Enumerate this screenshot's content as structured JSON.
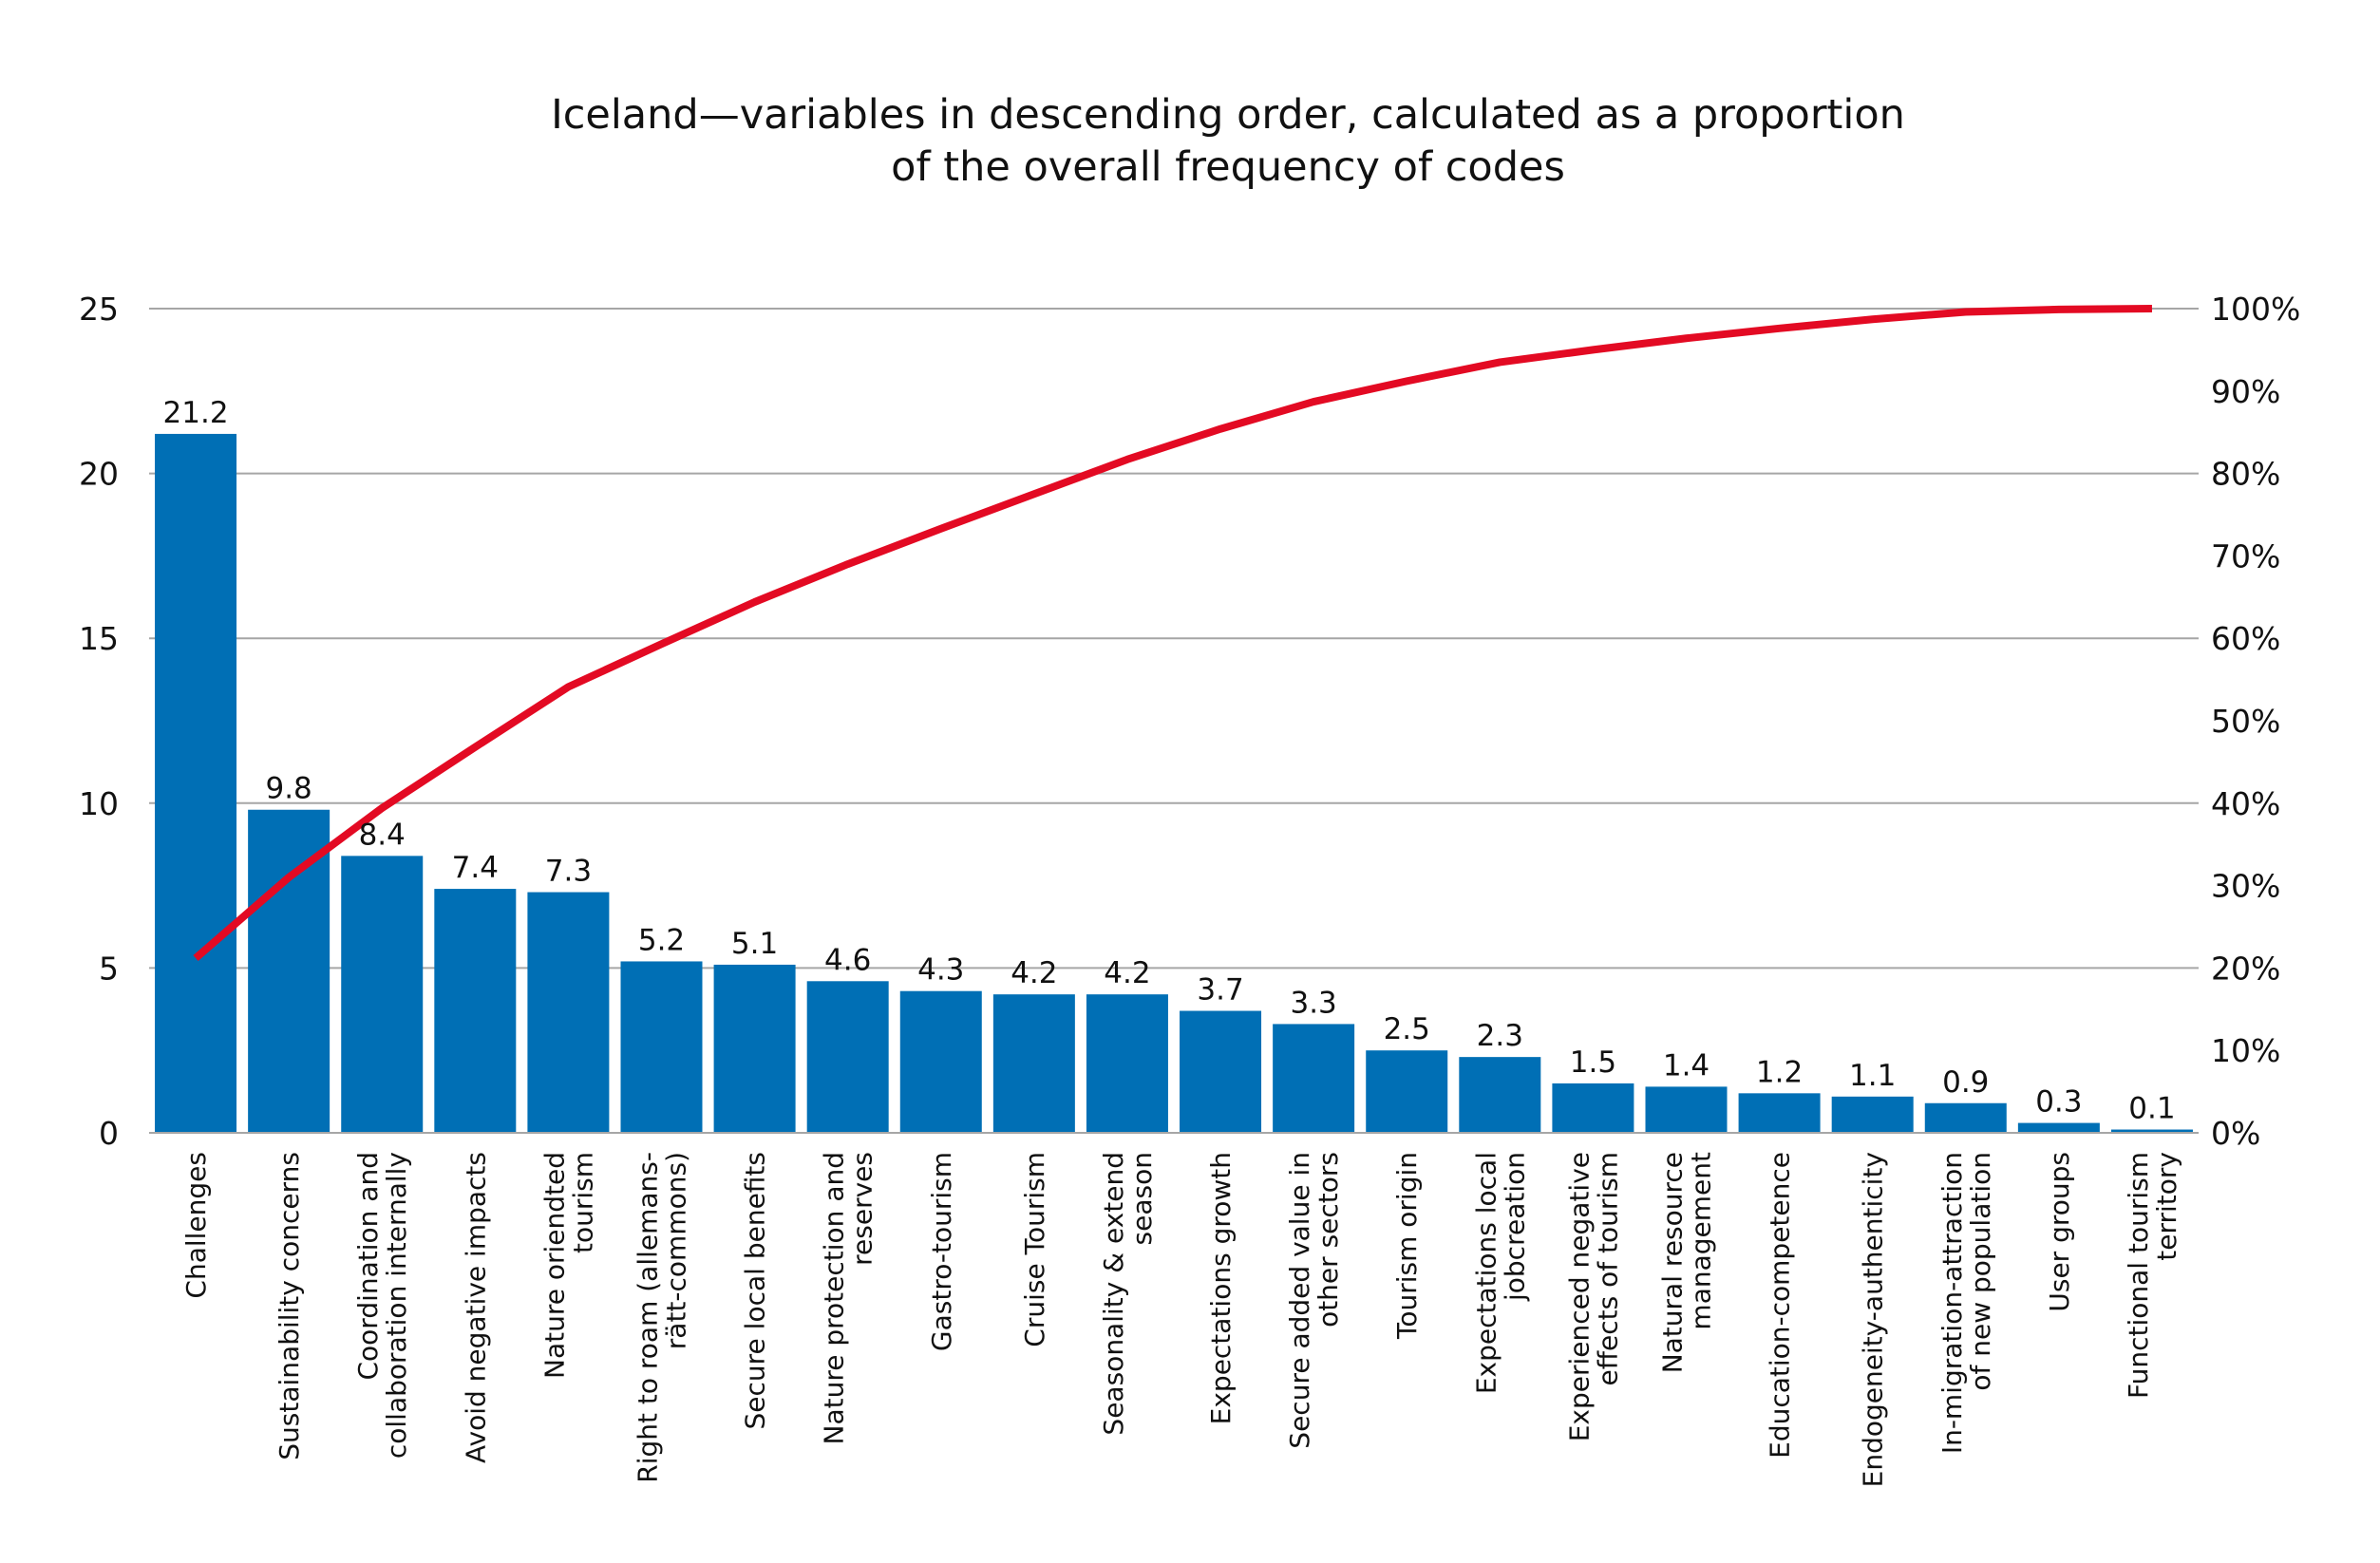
{
  "chart_data": {
    "type": "bar",
    "title": [
      "Iceland—variables in descending order, calculated as a proportion",
      "of the overall frequency of codes"
    ],
    "categories": [
      [
        "Challenges"
      ],
      [
        "Sustainability concerns"
      ],
      [
        "Coordination and",
        "collaboration internally"
      ],
      [
        "Avoid negative impacts"
      ],
      [
        "Nature oriendted",
        "tourism"
      ],
      [
        "Right to roam (allemans-",
        "rätt-commons)"
      ],
      [
        "Secure local benefits"
      ],
      [
        "Nature protection and",
        "reserves"
      ],
      [
        "Gastro-tourism"
      ],
      [
        "Cruise Tourism"
      ],
      [
        "Seasonality & extend",
        "season"
      ],
      [
        "Expectations growth"
      ],
      [
        "Secure added value in",
        "other sectors"
      ],
      [
        "Tourism origin"
      ],
      [
        "Expectations local",
        "jobcreation"
      ],
      [
        "Experienced negative",
        "effects of tourism"
      ],
      [
        "Natural resource",
        "management"
      ],
      [
        "Education-competence"
      ],
      [
        "Endogeneity-authenticity"
      ],
      [
        "In-migration-attraction",
        "of new population"
      ],
      [
        "User groups"
      ],
      [
        "Functional tourism",
        "territory"
      ]
    ],
    "series": [
      {
        "type": "bar",
        "axis": "left",
        "values": [
          21.2,
          9.8,
          8.4,
          7.4,
          7.3,
          5.2,
          5.1,
          4.6,
          4.3,
          4.2,
          4.2,
          3.7,
          3.3,
          2.5,
          2.3,
          1.5,
          1.4,
          1.2,
          1.1,
          0.9,
          0.3,
          0.1
        ],
        "labels": [
          "21.2",
          "9.8",
          "8.4",
          "7.4",
          "7.3",
          "5.2",
          "5.1",
          "4.6",
          "4.3",
          "4.2",
          "4.2",
          "3.7",
          "3.3",
          "2.5",
          "2.3",
          "1.5",
          "1.4",
          "1.2",
          "1.1",
          "0.9",
          "0.3",
          "0.1"
        ],
        "color": "#006fb5"
      },
      {
        "type": "line",
        "axis": "right",
        "values": [
          21.2,
          31.0,
          39.4,
          46.8,
          54.1,
          59.3,
          64.4,
          69.0,
          73.3,
          77.5,
          81.7,
          85.4,
          88.7,
          91.2,
          93.5,
          95.0,
          96.4,
          97.6,
          98.7,
          99.6,
          99.9,
          100.0
        ],
        "color": "#e30a23"
      }
    ],
    "left_axis": {
      "ylim": [
        0,
        25
      ],
      "ticks": [
        "0",
        "5",
        "10",
        "15",
        "20",
        "25"
      ]
    },
    "right_axis": {
      "ylim": [
        0,
        100
      ],
      "ticks": [
        "0%",
        "10%",
        "20%",
        "30%",
        "40%",
        "50%",
        "60%",
        "70%",
        "80%",
        "90%",
        "100%"
      ]
    },
    "grid": true,
    "gridline_color": "#a6a6a6",
    "xlabel": "",
    "ylabel": ""
  }
}
